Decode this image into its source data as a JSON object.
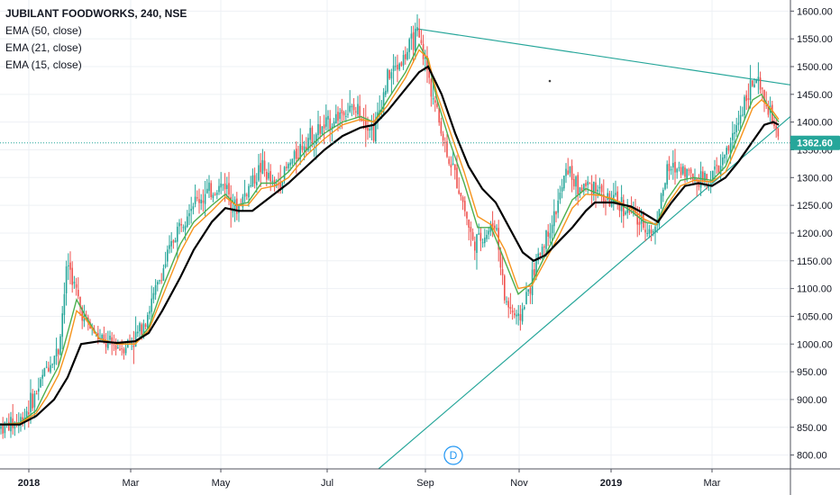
{
  "header": {
    "symbol_line": "JUBILANT FOODWORKS, 240, NSE",
    "indicators": [
      "EMA (50, close)",
      "EMA (21, close)",
      "EMA (15, close)"
    ]
  },
  "price_tag": "1362.60",
  "marker_label": "D",
  "colors": {
    "up": "#26a69a",
    "down": "#ef5350",
    "ema50": "#000000",
    "ema21": "#f7941d",
    "ema15": "#4caf50",
    "trendline": "#26a69a",
    "last_price_line": "#26a69a"
  },
  "chart_data": {
    "type": "candlestick",
    "x_labels": [
      "2018",
      "Mar",
      "May",
      "Jul",
      "Sep",
      "Nov",
      "2019",
      "Mar"
    ],
    "x_label_bold": [
      "2018",
      "2019"
    ],
    "ylim": [
      775,
      1620
    ],
    "y_ticks": [
      800,
      850,
      900,
      950,
      1000,
      1050,
      1100,
      1150,
      1200,
      1250,
      1300,
      1350,
      1400,
      1450,
      1500,
      1550,
      1600
    ],
    "y_tick_labels": [
      "800.00",
      "850.00",
      "900.00",
      "950.00",
      "1000.00",
      "1050.00",
      "1100.00",
      "1150.00",
      "1200.00",
      "1250.00",
      "1300.00",
      "1350.00",
      "1400.00",
      "1450.00",
      "1500.00",
      "1550.00",
      "1600.00"
    ],
    "last_price": 1362.6,
    "price_path": [
      [
        0,
        850
      ],
      [
        22,
        860
      ],
      [
        40,
        910
      ],
      [
        52,
        960
      ],
      [
        65,
        990
      ],
      [
        75,
        1150
      ],
      [
        90,
        1060
      ],
      [
        100,
        1030
      ],
      [
        115,
        1000
      ],
      [
        135,
        995
      ],
      [
        150,
        1010
      ],
      [
        165,
        1060
      ],
      [
        180,
        1130
      ],
      [
        195,
        1200
      ],
      [
        210,
        1250
      ],
      [
        230,
        1270
      ],
      [
        250,
        1290
      ],
      [
        262,
        1240
      ],
      [
        275,
        1280
      ],
      [
        290,
        1320
      ],
      [
        305,
        1280
      ],
      [
        320,
        1320
      ],
      [
        340,
        1370
      ],
      [
        360,
        1390
      ],
      [
        380,
        1420
      ],
      [
        400,
        1420
      ],
      [
        415,
        1380
      ],
      [
        430,
        1480
      ],
      [
        450,
        1520
      ],
      [
        462,
        1560
      ],
      [
        470,
        1520
      ],
      [
        480,
        1450
      ],
      [
        495,
        1350
      ],
      [
        510,
        1280
      ],
      [
        525,
        1180
      ],
      [
        540,
        1200
      ],
      [
        550,
        1220
      ],
      [
        560,
        1080
      ],
      [
        575,
        1040
      ],
      [
        585,
        1090
      ],
      [
        600,
        1170
      ],
      [
        615,
        1230
      ],
      [
        630,
        1320
      ],
      [
        640,
        1280
      ],
      [
        660,
        1290
      ],
      [
        672,
        1260
      ],
      [
        690,
        1250
      ],
      [
        710,
        1220
      ],
      [
        725,
        1200
      ],
      [
        740,
        1310
      ],
      [
        755,
        1320
      ],
      [
        770,
        1300
      ],
      [
        785,
        1300
      ],
      [
        800,
        1320
      ],
      [
        815,
        1380
      ],
      [
        830,
        1460
      ],
      [
        840,
        1470
      ],
      [
        850,
        1430
      ],
      [
        860,
        1390
      ],
      [
        864,
        1362
      ]
    ],
    "ema15_path": [
      [
        0,
        855
      ],
      [
        22,
        858
      ],
      [
        40,
        880
      ],
      [
        52,
        920
      ],
      [
        65,
        960
      ],
      [
        75,
        1020
      ],
      [
        85,
        1080
      ],
      [
        95,
        1050
      ],
      [
        110,
        1010
      ],
      [
        130,
        1000
      ],
      [
        150,
        1000
      ],
      [
        165,
        1030
      ],
      [
        180,
        1100
      ],
      [
        200,
        1180
      ],
      [
        215,
        1220
      ],
      [
        235,
        1250
      ],
      [
        250,
        1270
      ],
      [
        262,
        1250
      ],
      [
        275,
        1255
      ],
      [
        290,
        1290
      ],
      [
        305,
        1290
      ],
      [
        320,
        1310
      ],
      [
        340,
        1350
      ],
      [
        360,
        1380
      ],
      [
        380,
        1400
      ],
      [
        400,
        1410
      ],
      [
        415,
        1400
      ],
      [
        430,
        1440
      ],
      [
        450,
        1490
      ],
      [
        465,
        1540
      ],
      [
        475,
        1510
      ],
      [
        485,
        1440
      ],
      [
        500,
        1360
      ],
      [
        515,
        1290
      ],
      [
        530,
        1210
      ],
      [
        545,
        1210
      ],
      [
        560,
        1150
      ],
      [
        575,
        1090
      ],
      [
        590,
        1110
      ],
      [
        605,
        1160
      ],
      [
        620,
        1210
      ],
      [
        635,
        1260
      ],
      [
        650,
        1280
      ],
      [
        665,
        1270
      ],
      [
        680,
        1260
      ],
      [
        700,
        1240
      ],
      [
        715,
        1220
      ],
      [
        728,
        1215
      ],
      [
        740,
        1260
      ],
      [
        755,
        1295
      ],
      [
        770,
        1300
      ],
      [
        790,
        1295
      ],
      [
        805,
        1320
      ],
      [
        820,
        1380
      ],
      [
        835,
        1440
      ],
      [
        845,
        1450
      ],
      [
        855,
        1420
      ],
      [
        864,
        1400
      ]
    ],
    "ema21_path": [
      [
        0,
        855
      ],
      [
        22,
        857
      ],
      [
        40,
        875
      ],
      [
        52,
        905
      ],
      [
        65,
        945
      ],
      [
        75,
        995
      ],
      [
        85,
        1060
      ],
      [
        95,
        1045
      ],
      [
        110,
        1010
      ],
      [
        130,
        1000
      ],
      [
        150,
        1000
      ],
      [
        165,
        1025
      ],
      [
        180,
        1085
      ],
      [
        200,
        1165
      ],
      [
        215,
        1210
      ],
      [
        235,
        1240
      ],
      [
        250,
        1265
      ],
      [
        262,
        1250
      ],
      [
        275,
        1250
      ],
      [
        290,
        1280
      ],
      [
        305,
        1285
      ],
      [
        320,
        1300
      ],
      [
        340,
        1340
      ],
      [
        360,
        1370
      ],
      [
        380,
        1395
      ],
      [
        400,
        1405
      ],
      [
        415,
        1400
      ],
      [
        430,
        1430
      ],
      [
        450,
        1480
      ],
      [
        465,
        1530
      ],
      [
        475,
        1515
      ],
      [
        485,
        1450
      ],
      [
        500,
        1380
      ],
      [
        515,
        1310
      ],
      [
        530,
        1230
      ],
      [
        545,
        1215
      ],
      [
        560,
        1170
      ],
      [
        575,
        1100
      ],
      [
        590,
        1105
      ],
      [
        605,
        1150
      ],
      [
        620,
        1195
      ],
      [
        635,
        1245
      ],
      [
        650,
        1270
      ],
      [
        665,
        1268
      ],
      [
        680,
        1262
      ],
      [
        700,
        1245
      ],
      [
        715,
        1225
      ],
      [
        728,
        1215
      ],
      [
        740,
        1250
      ],
      [
        755,
        1285
      ],
      [
        770,
        1295
      ],
      [
        790,
        1292
      ],
      [
        805,
        1310
      ],
      [
        820,
        1365
      ],
      [
        835,
        1425
      ],
      [
        845,
        1440
      ],
      [
        855,
        1425
      ],
      [
        864,
        1405
      ]
    ],
    "ema50_path": [
      [
        0,
        855
      ],
      [
        22,
        855
      ],
      [
        40,
        870
      ],
      [
        60,
        900
      ],
      [
        75,
        940
      ],
      [
        90,
        1000
      ],
      [
        110,
        1005
      ],
      [
        130,
        1002
      ],
      [
        150,
        1005
      ],
      [
        165,
        1020
      ],
      [
        180,
        1060
      ],
      [
        200,
        1120
      ],
      [
        215,
        1170
      ],
      [
        235,
        1220
      ],
      [
        250,
        1245
      ],
      [
        265,
        1240
      ],
      [
        280,
        1240
      ],
      [
        300,
        1265
      ],
      [
        320,
        1290
      ],
      [
        340,
        1320
      ],
      [
        360,
        1350
      ],
      [
        380,
        1375
      ],
      [
        400,
        1390
      ],
      [
        415,
        1395
      ],
      [
        430,
        1420
      ],
      [
        450,
        1460
      ],
      [
        465,
        1490
      ],
      [
        475,
        1500
      ],
      [
        490,
        1450
      ],
      [
        505,
        1380
      ],
      [
        520,
        1320
      ],
      [
        535,
        1280
      ],
      [
        550,
        1255
      ],
      [
        565,
        1210
      ],
      [
        580,
        1165
      ],
      [
        592,
        1150
      ],
      [
        605,
        1160
      ],
      [
        620,
        1185
      ],
      [
        635,
        1210
      ],
      [
        650,
        1240
      ],
      [
        660,
        1255
      ],
      [
        680,
        1255
      ],
      [
        700,
        1248
      ],
      [
        715,
        1235
      ],
      [
        730,
        1220
      ],
      [
        745,
        1255
      ],
      [
        760,
        1285
      ],
      [
        775,
        1290
      ],
      [
        790,
        1285
      ],
      [
        805,
        1300
      ],
      [
        820,
        1330
      ],
      [
        835,
        1365
      ],
      [
        848,
        1395
      ],
      [
        858,
        1400
      ],
      [
        864,
        1395
      ]
    ],
    "trendlines": [
      {
        "name": "descending-resistance",
        "from": [
          463,
          1568
        ],
        "to": [
          877,
          1467
        ]
      },
      {
        "name": "ascending-support",
        "from": [
          420,
          775
        ],
        "to": [
          877,
          1410
        ]
      }
    ],
    "dot_annotation": [
      610,
      1474
    ],
    "marker_x": 503
  }
}
